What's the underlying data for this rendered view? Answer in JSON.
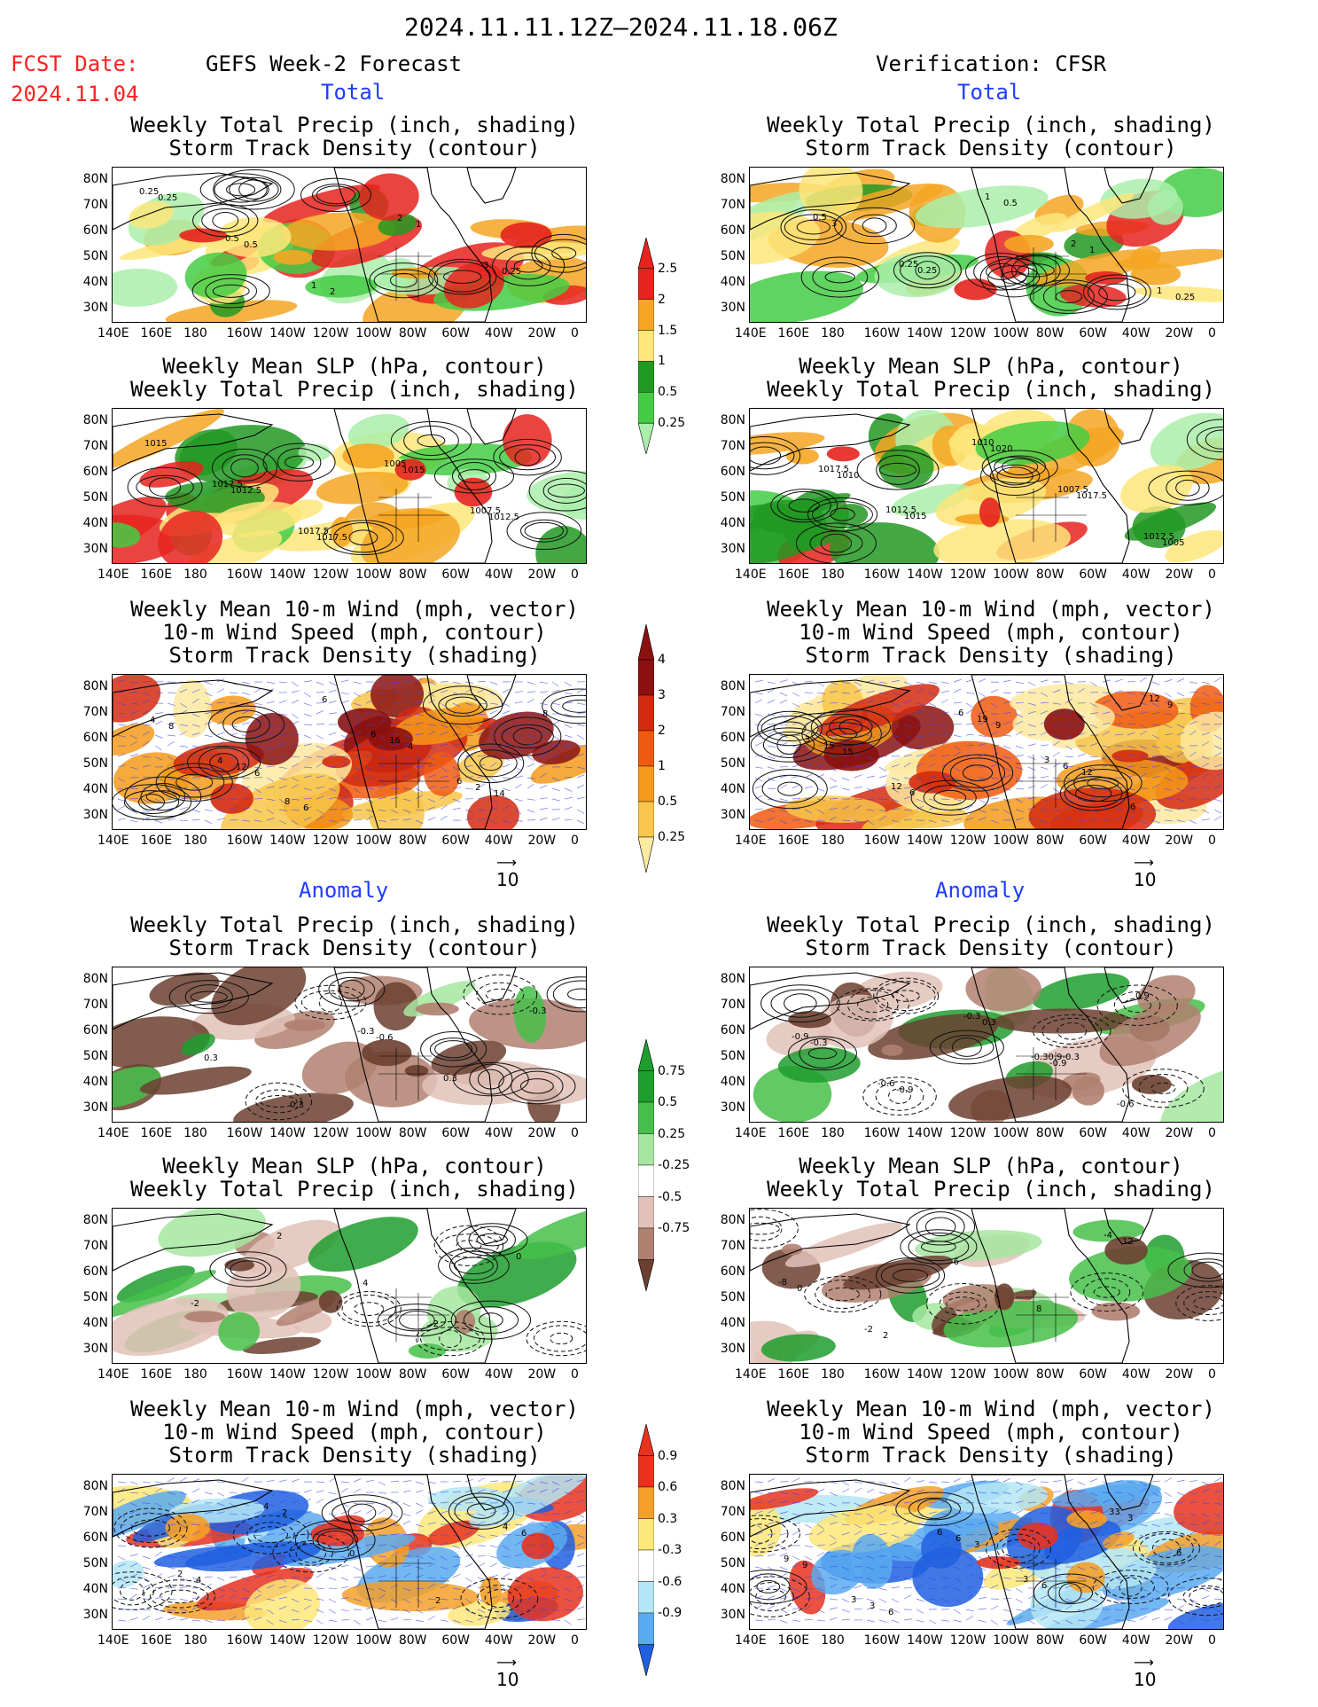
{
  "header": {
    "date_range": "2024.11.11.12Z—2024.11.18.06Z",
    "fcst_label": "FCST Date:",
    "fcst_date": "2024.11.04",
    "left_title": "GEFS Week-2 Forecast",
    "right_title": "Verification: CFSR",
    "total_label": "Total",
    "anomaly_label": "Anomaly"
  },
  "panel_titles": {
    "precip_track": "Weekly Total Precip (inch, shading)\nStorm Track Density (contour)",
    "slp_precip": "Weekly Mean SLP (hPa, contour)\nWeekly Total Precip (inch, shading)",
    "wind_track": "Weekly Mean 10-m Wind (mph, vector)\n10-m Wind Speed (mph, contour)\nStorm Track Density (shading)"
  },
  "axes": {
    "lat_ticks": [
      "80N",
      "70N",
      "60N",
      "50N",
      "40N",
      "30N"
    ],
    "lon_ticks": [
      "140E",
      "160E",
      "180",
      "160W",
      "140W",
      "120W",
      "100W",
      "80W",
      "60W",
      "40W",
      "20W",
      "0"
    ]
  },
  "vector_ref": {
    "value": "10"
  },
  "colorbars": {
    "precip_total": {
      "labels": [
        "2.5",
        "2",
        "1.5",
        "1",
        "0.5",
        "0.25"
      ],
      "colors": [
        "#e6231e",
        "#f5a623",
        "#fde67a",
        "#229922",
        "#44cc44",
        "#aaeeaa"
      ]
    },
    "track_total": {
      "labels": [
        "4",
        "3",
        "2",
        "1",
        "0.5",
        "0.25"
      ],
      "colors": [
        "#8b1010",
        "#d42a10",
        "#f05a10",
        "#f59a1a",
        "#f8c64a",
        "#fde9a0"
      ]
    },
    "precip_anom": {
      "labels": [
        "0.75",
        "0.5",
        "0.25",
        "-0.25",
        "-0.5",
        "-0.75"
      ],
      "colors": [
        "#1e9e2e",
        "#46c04a",
        "#a6e6a0",
        "#ffffff",
        "#e2c2b8",
        "#b08070",
        "#6b4030"
      ]
    },
    "track_anom": {
      "labels": [
        "0.9",
        "0.6",
        "0.3",
        "-0.3",
        "-0.6",
        "-0.9"
      ],
      "colors": [
        "#e8321e",
        "#f5a02a",
        "#fde87a",
        "#ffffff",
        "#b4e6f5",
        "#5aaaf0",
        "#2060e0"
      ]
    }
  },
  "panel_labels": {
    "L1": [
      "0.25",
      "0.5",
      "1",
      "2",
      "3",
      "0.25",
      "0.5",
      "2",
      "1",
      "0.25"
    ],
    "R1": [
      "0.5",
      "0.25",
      "1",
      "2",
      "1",
      "3",
      "0.25",
      "0.5",
      "1",
      "0.25"
    ],
    "L2": [
      "1017.5",
      "1017.5",
      "1005",
      "1007.5",
      "1015",
      "1012.5",
      "1017.5",
      "1015",
      "1012.5"
    ],
    "R2": [
      "1012.5",
      "1010",
      "1007.5",
      "1012.5",
      "1017.5",
      "1015",
      "1020",
      "1017.5",
      "1005",
      "1010"
    ],
    "L3": [
      "8",
      "6",
      "6",
      "8",
      "4",
      "6",
      "16",
      "2",
      "4",
      "12",
      "6",
      "4",
      "14",
      "8",
      "6"
    ],
    "R3": [
      "6",
      "3",
      "6",
      "3",
      "12",
      "19",
      "6",
      "12",
      "15",
      "6",
      "9",
      "12",
      "9",
      "15"
    ],
    "L4": [
      "-0.3",
      "0.3",
      "-0.3",
      "0.3",
      "0.3",
      "-0.6"
    ],
    "R4": [
      "-0.30.9-0.3",
      "-0.6",
      "-0.9",
      "-0.6",
      "-0.3",
      "-0.9",
      "0.9",
      "-0.3",
      "-0.9",
      "0.3"
    ],
    "L5": [
      "-2",
      "0",
      "-2",
      "2",
      "4"
    ],
    "R5": [
      "-4",
      "-8",
      "-2",
      "-6",
      "8",
      "12",
      "0",
      "2"
    ],
    "L6": [
      "4",
      "2",
      "4",
      "0",
      "2",
      "6",
      "4",
      "2"
    ],
    "R6": [
      "6",
      "3",
      "6",
      "3",
      "33",
      "9",
      "3",
      "6",
      "6",
      "3",
      "9",
      "6",
      "3"
    ]
  }
}
